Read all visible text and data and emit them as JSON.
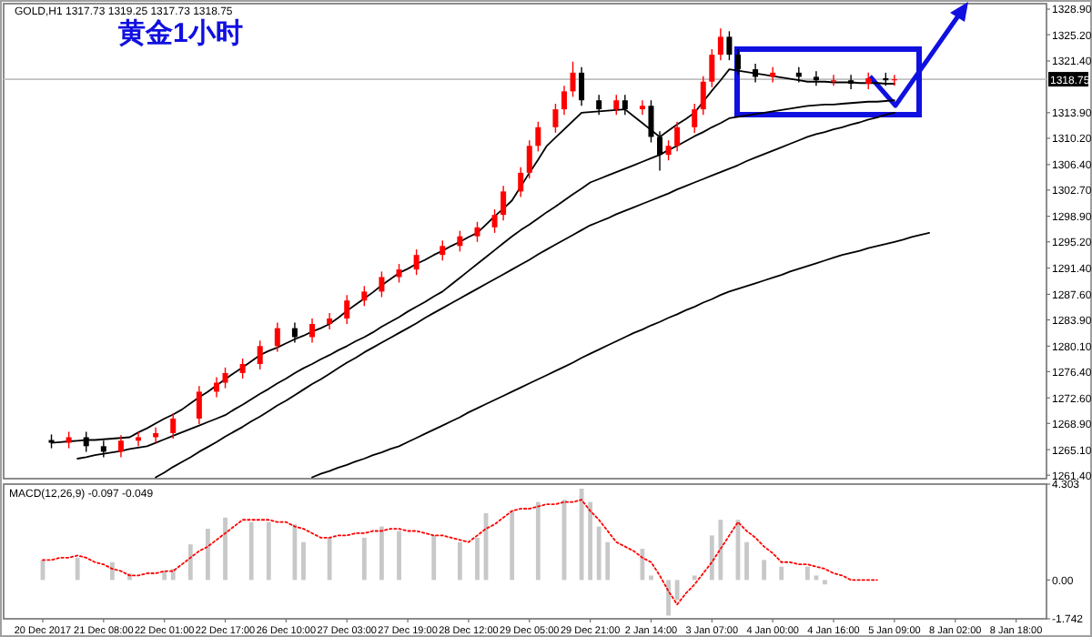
{
  "chart_data": [
    {
      "type": "candlestick",
      "title": "黄金1小时",
      "subtitle": "GOLD,H1 1317.73 1319.25 1317.73 1318.75",
      "ylim": [
        1260.9,
        1329.7
      ],
      "categories": [
        null,
        null,
        null,
        null,
        null,
        null,
        null,
        null,
        null,
        null,
        null,
        null,
        null,
        null,
        null,
        null,
        null,
        null,
        null,
        null,
        null,
        null,
        null,
        null,
        null,
        null,
        null,
        null,
        null,
        null,
        null,
        null,
        null,
        null,
        null,
        null,
        null,
        null,
        null,
        null,
        null,
        null,
        null,
        null,
        null,
        null,
        null,
        null,
        null,
        null,
        null,
        null,
        null,
        null,
        null,
        null,
        null,
        null,
        null,
        null,
        null,
        null,
        null,
        null,
        null,
        null,
        null,
        null,
        null,
        null,
        null,
        null,
        null,
        null,
        null,
        null,
        null,
        null,
        null,
        null,
        null,
        null,
        null,
        null,
        null,
        null,
        null,
        null,
        null,
        null,
        null,
        null,
        null,
        null,
        null,
        null,
        null,
        null,
        null,
        null,
        null,
        null,
        null,
        null,
        null,
        null,
        null,
        null,
        null,
        null,
        null,
        null,
        null,
        null,
        null,
        null,
        null,
        null,
        null,
        null
      ],
      "yticks": [
        {
          "value": 1328.9,
          "label": "1328.90"
        },
        {
          "value": 1325.2,
          "label": "1325.20"
        },
        {
          "value": 1321.4,
          "label": "1321.40"
        },
        {
          "value": 1313.9,
          "label": "1313.90"
        },
        {
          "value": 1310.2,
          "label": "1310.20"
        },
        {
          "value": 1306.4,
          "label": "1306.40"
        },
        {
          "value": 1302.7,
          "label": "1302.70"
        },
        {
          "value": 1298.9,
          "label": "1298.90"
        },
        {
          "value": 1295.2,
          "label": "1295.20"
        },
        {
          "value": 1291.4,
          "label": "1291.40"
        },
        {
          "value": 1287.6,
          "label": "1287.60"
        },
        {
          "value": 1283.9,
          "label": "1283.90"
        },
        {
          "value": 1280.1,
          "label": "1280.10"
        },
        {
          "value": 1276.4,
          "label": "1276.40"
        },
        {
          "value": 1272.6,
          "label": "1272.60"
        },
        {
          "value": 1268.9,
          "label": "1268.90"
        },
        {
          "value": 1265.1,
          "label": "1265.10"
        },
        {
          "value": 1261.4,
          "label": "1261.40"
        }
      ],
      "ref_lines": [
        {
          "axis": "y",
          "value": 1318.75,
          "label": "1318.75",
          "color": "#c0c0c0"
        }
      ],
      "series": [
        {
          "ohlc": [
            null,
            null,
            null,
            null,
            null,
            [
              1266.5,
              1267.3,
              1265.3,
              1266.1
            ],
            null,
            [
              1266.1,
              1267.7,
              1265.3,
              1266.9
            ],
            null,
            [
              1266.9,
              1267.7,
              1264.8,
              1265.6
            ],
            null,
            [
              1265.6,
              1266.4,
              1264.0,
              1264.8
            ],
            null,
            [
              1264.8,
              1267.2,
              1264.0,
              1266.4
            ],
            null,
            [
              1266.4,
              1267.7,
              1265.6,
              1266.9
            ],
            null,
            [
              1266.9,
              1268.3,
              1266.1,
              1267.5
            ],
            null,
            [
              1267.5,
              1270.4,
              1266.7,
              1269.6
            ],
            null,
            null,
            [
              1269.6,
              1274.3,
              1268.8,
              1273.5
            ],
            null,
            [
              1273.5,
              1275.6,
              1272.7,
              1274.8
            ],
            [
              1274.8,
              1277.0,
              1274.0,
              1276.2
            ],
            null,
            [
              1276.2,
              1278.3,
              1275.4,
              1277.5
            ],
            null,
            [
              1277.5,
              1280.9,
              1276.7,
              1280.1
            ],
            null,
            [
              1280.1,
              1283.5,
              1279.3,
              1282.7
            ],
            null,
            [
              1282.7,
              1283.5,
              1280.6,
              1281.4
            ],
            null,
            [
              1281.4,
              1284.1,
              1280.6,
              1283.3
            ],
            null,
            [
              1283.3,
              1284.9,
              1282.5,
              1284.1
            ],
            null,
            [
              1284.1,
              1287.5,
              1283.3,
              1286.7
            ],
            null,
            [
              1286.7,
              1288.8,
              1285.9,
              1288.0
            ],
            null,
            [
              1288.0,
              1290.9,
              1287.2,
              1290.1
            ],
            null,
            [
              1290.1,
              1292.0,
              1289.3,
              1291.2
            ],
            null,
            [
              1291.2,
              1294.1,
              1290.4,
              1293.3
            ],
            null,
            null,
            [
              1293.3,
              1295.4,
              1292.5,
              1294.6
            ],
            null,
            [
              1294.6,
              1296.8,
              1293.8,
              1296.0
            ],
            null,
            [
              1296.0,
              1298.1,
              1295.2,
              1297.3
            ],
            null,
            [
              1297.3,
              1299.9,
              1296.5,
              1299.1
            ],
            [
              1299.1,
              1303.3,
              1298.3,
              1302.5
            ],
            null,
            [
              1302.5,
              1306.0,
              1301.7,
              1305.2
            ],
            [
              1305.2,
              1309.9,
              1304.4,
              1309.1
            ],
            [
              1309.1,
              1312.6,
              1308.3,
              1311.8
            ],
            null,
            [
              1311.8,
              1315.2,
              1311.0,
              1314.4
            ],
            [
              1314.4,
              1317.8,
              1313.6,
              1317.0
            ],
            [
              1317.0,
              1321.3,
              1316.2,
              1319.7
            ],
            [
              1319.7,
              1320.5,
              1314.9,
              1315.7
            ],
            null,
            [
              1315.7,
              1316.5,
              1313.6,
              1314.4
            ],
            null,
            [
              1314.4,
              1316.5,
              1313.6,
              1315.7
            ],
            [
              1315.7,
              1316.5,
              1313.6,
              1314.4
            ],
            null,
            [
              1314.4,
              1315.7,
              1313.6,
              1314.9
            ],
            [
              1314.9,
              1315.7,
              1309.6,
              1310.4
            ],
            [
              1310.4,
              1311.2,
              1305.5,
              1307.8
            ],
            [
              1307.8,
              1309.9,
              1307.0,
              1309.1
            ],
            [
              1309.1,
              1312.6,
              1308.3,
              1311.8
            ],
            null,
            [
              1311.8,
              1315.2,
              1311.0,
              1314.4
            ],
            [
              1314.4,
              1319.2,
              1313.6,
              1318.4
            ],
            [
              1318.4,
              1323.1,
              1317.6,
              1322.3
            ],
            [
              1322.3,
              1326.1,
              1321.5,
              1324.9
            ],
            [
              1324.9,
              1325.7,
              1321.5,
              1322.3
            ],
            [
              1322.3,
              1323.1,
              1319.4,
              1320.2
            ],
            null,
            [
              1320.2,
              1321.0,
              1318.3,
              1319.1
            ],
            null,
            [
              1319.1,
              1320.5,
              1318.3,
              1319.7
            ],
            null,
            null,
            [
              1319.7,
              1320.5,
              1318.3,
              1319.1
            ],
            null,
            [
              1319.1,
              1319.9,
              1317.8,
              1318.6
            ],
            null,
            [
              1318.6,
              1319.4,
              1317.8,
              1318.6
            ],
            null,
            [
              1318.6,
              1319.4,
              1317.3,
              1318.1
            ],
            null,
            [
              1318.1,
              1319.7,
              1317.3,
              1318.9
            ],
            null,
            [
              1318.9,
              1319.7,
              1317.8,
              1318.6
            ],
            [
              1318.6,
              1319.4,
              1317.8,
              1318.75
            ],
            null,
            null,
            null,
            null,
            null,
            null,
            null,
            null,
            null,
            null,
            null,
            null,
            null,
            null,
            null,
            null,
            null
          ],
          "colors": [
            null,
            null,
            null,
            null,
            null,
            "#000000",
            null,
            "#ff0000",
            null,
            "#000000",
            null,
            "#000000",
            null,
            "#ff0000",
            null,
            "#ff0000",
            null,
            "#ff0000",
            null,
            "#ff0000",
            null,
            null,
            "#ff0000",
            null,
            "#ff0000",
            "#ff0000",
            null,
            "#ff0000",
            null,
            "#ff0000",
            null,
            "#ff0000",
            null,
            "#000000",
            null,
            "#ff0000",
            null,
            "#ff0000",
            null,
            "#ff0000",
            null,
            "#ff0000",
            null,
            "#ff0000",
            null,
            "#ff0000",
            null,
            "#ff0000",
            null,
            null,
            "#ff0000",
            null,
            "#ff0000",
            null,
            "#ff0000",
            null,
            "#ff0000",
            "#ff0000",
            null,
            "#ff0000",
            "#ff0000",
            "#ff0000",
            null,
            "#ff0000",
            "#ff0000",
            "#ff0000",
            "#000000",
            null,
            "#000000",
            null,
            "#ff0000",
            "#000000",
            null,
            "#ff0000",
            "#000000",
            "#000000",
            "#ff0000",
            "#ff0000",
            null,
            "#ff0000",
            "#ff0000",
            "#ff0000",
            "#ff0000",
            "#000000",
            "#000000",
            null,
            "#000000",
            null,
            "#ff0000",
            null,
            null,
            "#000000",
            null,
            "#000000",
            null,
            "#ff0000",
            null,
            "#000000",
            null,
            "#ff0000",
            null,
            "#000000",
            "#ff0000",
            null,
            null,
            null,
            null,
            null,
            null,
            null,
            null,
            null,
            null,
            null,
            null,
            null,
            null,
            null,
            null,
            null
          ]
        },
        {
          "type": "line",
          "color": "#000000",
          "values": [
            null,
            null,
            null,
            null,
            null,
            1266.1,
            1266.2,
            1266.3,
            1266.4,
            1266.5,
            1266.5,
            1266.6,
            1266.7,
            1266.8,
            1266.9,
            1267.6,
            1268.2,
            1268.9,
            1269.6,
            1270.2,
            1270.9,
            1271.8,
            1272.7,
            1273.5,
            1274.4,
            1275.3,
            1276.2,
            1277.0,
            1277.9,
            1278.8,
            1279.4,
            1279.9,
            1280.5,
            1281.1,
            1281.6,
            1282.2,
            1282.7,
            1283.3,
            1284.2,
            1285.2,
            1286.1,
            1287.0,
            1287.9,
            1288.9,
            1289.8,
            1290.7,
            1291.3,
            1292.0,
            1292.6,
            1293.3,
            1293.9,
            1294.6,
            1295.2,
            1295.9,
            1296.5,
            1297.7,
            1298.9,
            1300.0,
            1301.2,
            1303.2,
            1305.2,
            1307.1,
            1309.1,
            1310.3,
            1311.5,
            1312.7,
            1313.9,
            1314.0,
            1314.1,
            1314.2,
            1314.3,
            1314.4,
            1313.4,
            1312.4,
            1311.4,
            1310.4,
            1311.3,
            1312.2,
            1313.0,
            1313.9,
            1315.5,
            1317.1,
            1318.6,
            1320.2,
            1320.0,
            1319.8,
            1319.6,
            1319.4,
            1319.2,
            1319.0,
            1318.8,
            1318.6,
            1318.4,
            1318.4,
            1318.4,
            1318.3,
            1318.3,
            1318.3,
            1318.2,
            1318.2,
            1318.2,
            1318.1,
            1318.1,
            null,
            null,
            null,
            null,
            null,
            null,
            null,
            null,
            null,
            null,
            null,
            null,
            null,
            null,
            null,
            null,
            null
          ]
        },
        {
          "type": "line",
          "color": "#000000",
          "values": [
            null,
            null,
            null,
            null,
            null,
            null,
            null,
            null,
            1263.8,
            1264.0,
            1264.3,
            1264.5,
            1264.7,
            1264.9,
            1265.2,
            1265.4,
            1265.6,
            1266.1,
            1266.6,
            1267.1,
            1267.6,
            1268.1,
            1268.6,
            1269.1,
            1269.6,
            1270.1,
            1270.9,
            1271.6,
            1272.4,
            1273.2,
            1273.9,
            1274.7,
            1275.4,
            1276.2,
            1276.9,
            1277.5,
            1278.2,
            1278.8,
            1279.5,
            1280.1,
            1280.8,
            1281.4,
            1282.1,
            1282.9,
            1283.6,
            1284.3,
            1285.1,
            1285.8,
            1286.5,
            1287.3,
            1288.0,
            1289.0,
            1290.0,
            1291.0,
            1292.0,
            1293.0,
            1294.0,
            1295.0,
            1296.0,
            1296.9,
            1297.7,
            1298.6,
            1299.5,
            1300.3,
            1301.2,
            1302.1,
            1302.9,
            1303.8,
            1304.3,
            1304.8,
            1305.3,
            1305.8,
            1306.3,
            1306.8,
            1307.3,
            1307.8,
            1308.5,
            1309.1,
            1309.8,
            1310.5,
            1311.1,
            1311.8,
            1312.4,
            1313.1,
            1313.3,
            1313.5,
            1313.7,
            1313.9,
            1314.1,
            1314.3,
            1314.5,
            1314.7,
            1314.9,
            1315.0,
            1315.1,
            1315.1,
            1315.2,
            1315.3,
            1315.4,
            1315.5,
            1315.5,
            1315.6,
            1315.7,
            null,
            null,
            null,
            null,
            null,
            null,
            null,
            null,
            null,
            null,
            null,
            null,
            null,
            null,
            null,
            null,
            null
          ]
        },
        {
          "type": "line",
          "color": "#000000",
          "values": [
            null,
            null,
            null,
            null,
            null,
            null,
            null,
            null,
            null,
            null,
            null,
            null,
            null,
            null,
            null,
            null,
            null,
            1261.1,
            1261.8,
            1262.6,
            1263.3,
            1264.0,
            1264.8,
            1265.5,
            1266.2,
            1267.0,
            1267.7,
            1268.4,
            1269.2,
            1269.9,
            1270.7,
            1271.5,
            1272.2,
            1273.0,
            1273.8,
            1274.6,
            1275.3,
            1276.1,
            1276.9,
            1277.7,
            1278.4,
            1279.2,
            1279.9,
            1280.6,
            1281.3,
            1282.0,
            1282.7,
            1283.4,
            1284.2,
            1284.9,
            1285.6,
            1286.3,
            1287.0,
            1287.7,
            1288.4,
            1289.1,
            1289.8,
            1290.5,
            1291.2,
            1291.9,
            1292.6,
            1293.4,
            1294.1,
            1294.8,
            1295.5,
            1296.2,
            1296.9,
            1297.6,
            1298.1,
            1298.6,
            1299.2,
            1299.7,
            1300.2,
            1300.7,
            1301.2,
            1301.7,
            1302.2,
            1302.8,
            1303.3,
            1303.8,
            1304.3,
            1304.8,
            1305.3,
            1305.8,
            1306.3,
            1306.9,
            1307.4,
            1307.9,
            1308.4,
            1308.9,
            1309.4,
            1309.9,
            1310.4,
            1310.8,
            1311.1,
            1311.5,
            1311.8,
            1312.2,
            1312.5,
            1312.9,
            1313.2,
            1313.6,
            1313.9,
            null,
            null,
            null,
            null,
            null,
            null,
            null,
            null,
            null,
            null,
            null,
            null,
            null,
            null,
            null,
            null,
            null
          ]
        },
        {
          "type": "line",
          "color": "#000000",
          "values": [
            null,
            null,
            null,
            null,
            null,
            null,
            null,
            null,
            null,
            null,
            null,
            null,
            null,
            null,
            null,
            null,
            null,
            null,
            null,
            null,
            null,
            null,
            null,
            null,
            null,
            null,
            null,
            null,
            null,
            null,
            null,
            null,
            null,
            null,
            null,
            1261.1,
            1261.6,
            1262.0,
            1262.5,
            1262.9,
            1263.4,
            1263.8,
            1264.3,
            1264.7,
            1265.2,
            1265.6,
            1266.2,
            1266.8,
            1267.4,
            1268.0,
            1268.6,
            1269.2,
            1269.8,
            1270.5,
            1271.1,
            1271.7,
            1272.3,
            1272.9,
            1273.5,
            1274.1,
            1274.7,
            1275.3,
            1275.9,
            1276.5,
            1277.1,
            1277.7,
            1278.4,
            1279.0,
            1279.6,
            1280.2,
            1280.8,
            1281.4,
            1282.0,
            1282.5,
            1283.1,
            1283.6,
            1284.2,
            1284.7,
            1285.3,
            1285.8,
            1286.4,
            1286.9,
            1287.5,
            1288.0,
            1288.4,
            1288.8,
            1289.2,
            1289.6,
            1290.0,
            1290.4,
            1290.9,
            1291.3,
            1291.7,
            1292.1,
            1292.5,
            1292.9,
            1293.3,
            1293.6,
            1293.9,
            1294.3,
            1294.6,
            1294.9,
            1295.2,
            1295.5,
            1295.9,
            1296.2,
            1296.5,
            null,
            null,
            null,
            null,
            null,
            null,
            null,
            null,
            null,
            null,
            null,
            null,
            null
          ]
        }
      ]
    },
    {
      "type": "bar",
      "annotations": [
        "MACD(12,26,9) -0.097 -0.049"
      ],
      "ylim": [
        -1.742,
        4.303
      ],
      "categories": [
        null,
        null,
        null,
        null,
        "20 Dec 2017",
        null,
        null,
        null,
        null,
        null,
        null,
        "21 Dec 08:00",
        null,
        null,
        null,
        null,
        null,
        null,
        "22 Dec 01:00",
        null,
        null,
        null,
        null,
        null,
        null,
        "22 Dec 17:00",
        null,
        null,
        null,
        null,
        null,
        null,
        "26 Dec 10:00",
        null,
        null,
        null,
        null,
        null,
        null,
        "27 Dec 03:00",
        null,
        null,
        null,
        null,
        null,
        null,
        "27 Dec 19:00",
        null,
        null,
        null,
        null,
        null,
        null,
        "28 Dec 12:00",
        null,
        null,
        null,
        null,
        null,
        null,
        "29 Dec 05:00",
        null,
        null,
        null,
        null,
        null,
        null,
        "29 Dec 21:00",
        null,
        null,
        null,
        null,
        null,
        null,
        "2 Jan 14:00",
        null,
        null,
        null,
        null,
        null,
        null,
        "3 Jan 07:00",
        null,
        null,
        null,
        null,
        null,
        null,
        "4 Jan 00:00",
        null,
        null,
        null,
        null,
        null,
        null,
        "4 Jan 16:00",
        null,
        null,
        null,
        null,
        null,
        null,
        "5 Jan 09:00",
        null,
        null,
        null,
        null,
        null,
        null,
        "8 Jan 02:00",
        null,
        null,
        null,
        null,
        null,
        null,
        "8 Jan 18:00",
        null,
        null,
        null
      ],
      "yticks": [
        {
          "value": 4.303,
          "label": "4.303"
        },
        {
          "value": 0,
          "label": "0.00"
        },
        {
          "value": -1.742,
          "label": "-1.742"
        }
      ],
      "series": [
        {
          "color": "#c8c8c8",
          "values": [
            null,
            null,
            null,
            null,
            0.9,
            null,
            null,
            null,
            1.0,
            null,
            null,
            null,
            0.8,
            null,
            0.3,
            null,
            null,
            null,
            0.4,
            0.5,
            null,
            1.6,
            null,
            2.3,
            null,
            2.8,
            null,
            null,
            2.6,
            null,
            2.6,
            null,
            null,
            2.5,
            1.7,
            null,
            null,
            1.9,
            null,
            null,
            null,
            1.9,
            null,
            2.4,
            null,
            2.2,
            null,
            null,
            null,
            2.0,
            null,
            null,
            1.7,
            null,
            1.9,
            3.0,
            null,
            null,
            3.1,
            null,
            null,
            3.5,
            null,
            null,
            3.6,
            null,
            4.1,
            3.5,
            2.4,
            1.7,
            null,
            null,
            null,
            1.4,
            0.2,
            null,
            -1.6,
            -0.9,
            null,
            0.2,
            null,
            2.0,
            2.7,
            null,
            2.7,
            1.7,
            null,
            0.9,
            null,
            0.6,
            null,
            null,
            0.6,
            0.2,
            -0.2,
            null,
            null,
            null,
            null,
            null,
            null,
            null,
            null,
            null,
            null,
            null,
            null,
            null,
            null,
            null,
            null,
            null,
            null,
            null,
            null,
            null,
            null,
            null,
            null,
            null
          ]
        },
        {
          "type": "line",
          "color": "#ff0000",
          "line_style": "dotted",
          "values": [
            null,
            null,
            null,
            null,
            0.9,
            0.9,
            1.0,
            1.0,
            1.1,
            1.0,
            0.8,
            0.7,
            0.5,
            0.4,
            0.2,
            0.2,
            0.3,
            0.3,
            0.4,
            0.4,
            0.7,
            1.0,
            1.3,
            1.5,
            1.8,
            2.1,
            2.4,
            2.7,
            2.7,
            2.7,
            2.7,
            2.6,
            2.6,
            2.4,
            2.3,
            2.1,
            1.9,
            1.9,
            2.0,
            2.0,
            2.1,
            2.1,
            2.2,
            2.2,
            2.3,
            2.3,
            2.2,
            2.2,
            2.1,
            2.0,
            2.0,
            1.9,
            1.8,
            1.7,
            2.0,
            2.3,
            2.5,
            2.8,
            3.1,
            3.2,
            3.2,
            3.3,
            3.4,
            3.4,
            3.5,
            3.5,
            3.6,
            3.1,
            2.7,
            2.2,
            1.7,
            1.5,
            1.3,
            1.0,
            0.8,
            0.2,
            -0.5,
            -1.1,
            -0.6,
            -0.2,
            0.3,
            0.8,
            1.4,
            2.0,
            2.6,
            2.2,
            1.9,
            1.5,
            1.2,
            0.8,
            0.8,
            0.7,
            0.7,
            0.6,
            0.5,
            0.3,
            0.2,
            0,
            0,
            0,
            0,
            null,
            null,
            null,
            null,
            null,
            null,
            null,
            null,
            null,
            null,
            null,
            null,
            null,
            null,
            null,
            null,
            null,
            null,
            null
          ]
        }
      ]
    }
  ]
}
